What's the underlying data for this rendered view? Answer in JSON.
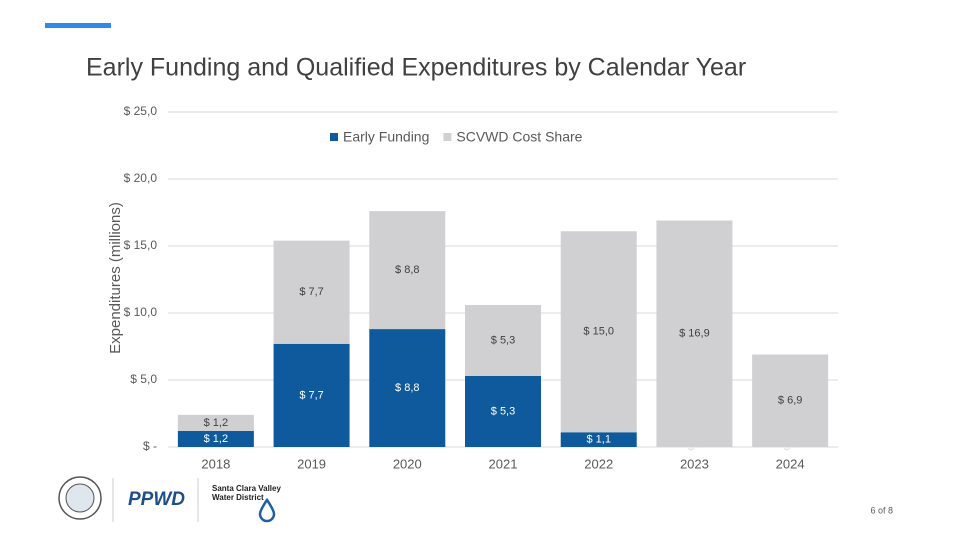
{
  "chart_data": {
    "type": "bar",
    "stacked": true,
    "title": "Early Funding and Qualified Expenditures by Calendar Year",
    "y_label": "Expenditures (millions)",
    "categories": [
      "2018",
      "2019",
      "2020",
      "2021",
      "2022",
      "2023",
      "2024"
    ],
    "series": [
      {
        "name": "Early Funding",
        "color": "#0e5a9c",
        "values": [
          1.2,
          7.7,
          8.8,
          5.3,
          1.1,
          0,
          0
        ],
        "value_labels": [
          "$ 1,2",
          "$ 7,7",
          "$ 8,8",
          "$ 5,3",
          "$ 1,1",
          "$ -",
          "$ -"
        ]
      },
      {
        "name": "SCVWD Cost Share",
        "color": "#d0cfd1",
        "values": [
          1.2,
          7.7,
          8.8,
          5.3,
          15.0,
          16.9,
          6.9
        ],
        "value_labels": [
          "$ 1,2",
          "$ 7,7",
          "$ 8,8",
          "$ 5,3",
          "$ 15,0",
          "$ 16,9",
          "$ 6,9"
        ]
      }
    ],
    "ylim": [
      0,
      25
    ],
    "yticks": [
      {
        "value": 0,
        "label": "$ -"
      },
      {
        "value": 5,
        "label": "$ 5,0"
      },
      {
        "value": 10,
        "label": "$ 10,0"
      },
      {
        "value": 15,
        "label": "$ 15,0"
      },
      {
        "value": 20,
        "label": "$ 20,0"
      },
      {
        "value": 25,
        "label": "$ 25,0"
      }
    ],
    "grid": true,
    "legend": "top"
  },
  "footer": {
    "logo_left": "PPWD",
    "logo_right": "Santa Clara Valley Water District",
    "page": "6 of 8"
  }
}
